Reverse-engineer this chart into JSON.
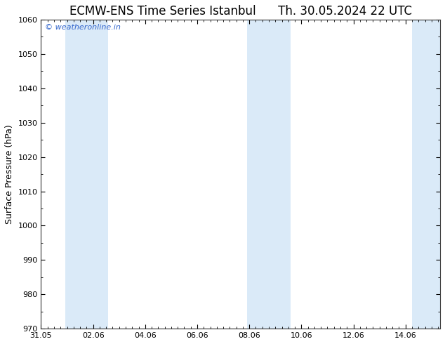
{
  "title": "ECMW-ENS Time Series Istanbul      Th. 30.05.2024 22 UTC",
  "ylabel": "Surface Pressure (hPa)",
  "xlim": [
    0.0,
    15.33
  ],
  "ylim": [
    970,
    1060
  ],
  "yticks": [
    970,
    980,
    990,
    1000,
    1010,
    1020,
    1030,
    1040,
    1050,
    1060
  ],
  "xtick_positions": [
    0.0,
    2.0,
    4.0,
    6.0,
    8.0,
    10.0,
    12.0,
    14.0
  ],
  "xtick_labels": [
    "31.05",
    "02.06",
    "04.06",
    "06.06",
    "08.06",
    "10.06",
    "12.06",
    "14.06"
  ],
  "shaded_bands": [
    {
      "xmin": 0.92,
      "xmax": 1.58,
      "color": "#daeaf8"
    },
    {
      "xmin": 1.58,
      "xmax": 2.58,
      "color": "#daeaf8"
    },
    {
      "xmin": 7.92,
      "xmax": 8.58,
      "color": "#daeaf8"
    },
    {
      "xmin": 8.58,
      "xmax": 9.58,
      "color": "#daeaf8"
    },
    {
      "xmin": 14.25,
      "xmax": 15.33,
      "color": "#daeaf8"
    }
  ],
  "watermark": "© weatheronline.in",
  "watermark_color": "#3366cc",
  "bg_color": "#ffffff",
  "title_fontsize": 12,
  "label_fontsize": 9,
  "tick_fontsize": 8,
  "watermark_fontsize": 8
}
